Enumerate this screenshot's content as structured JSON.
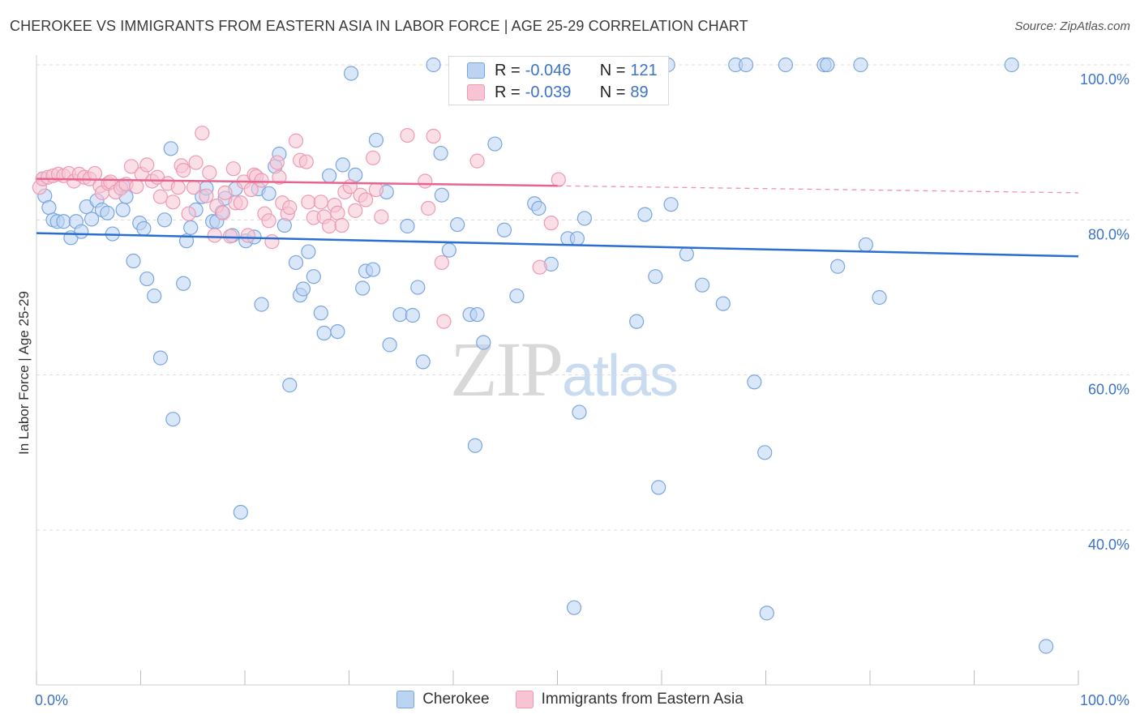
{
  "title": "CHEROKEE VS IMMIGRANTS FROM EASTERN ASIA IN LABOR FORCE | AGE 25-29 CORRELATION CHART",
  "source": "Source: ZipAtlas.com",
  "watermark": {
    "zip": "ZIP",
    "atlas": "atlas"
  },
  "legend_top": [
    {
      "r_label": "R =",
      "r_value": "-0.046",
      "n_label": "N =",
      "n_value": "121"
    },
    {
      "r_label": "R =",
      "r_value": "-0.039",
      "n_label": "N =",
      "n_value": "89"
    }
  ],
  "legend_bottom": [
    "Cherokee",
    "Immigrants from Eastern Asia"
  ],
  "colors": {
    "cherokee_fill": "#bcd4f2",
    "cherokee_stroke": "#7aa6e0",
    "cherokee_line": "#2a6fd0",
    "asia_fill": "#f7c4d4",
    "asia_stroke": "#ee9ab5",
    "asia_line": "#e8648f",
    "tick_text": "#3b73c8",
    "grid": "#dcdcdc"
  },
  "chart_data": {
    "type": "scatter",
    "title": "CHEROKEE VS IMMIGRANTS FROM EASTERN ASIA IN LABOR FORCE | AGE 25-29 CORRELATION CHART",
    "xlabel": "",
    "ylabel": "In Labor Force | Age 25-29",
    "xlim": [
      0,
      100
    ],
    "ylim": [
      20,
      102
    ],
    "x_tick_labels": [
      "0.0%",
      "100.0%"
    ],
    "y_ticks": [
      40,
      60,
      80,
      100
    ],
    "y_tick_labels": [
      "40.0%",
      "60.0%",
      "80.0%",
      "100.0%"
    ],
    "grid": true,
    "legend_position": "top-center",
    "series": [
      {
        "name": "Cherokee",
        "r": -0.046,
        "n": 121,
        "trend": {
          "x": [
            0,
            100
          ],
          "y": [
            78.3,
            75.3
          ]
        },
        "points": [
          [
            0.6,
            85.3
          ],
          [
            0.8,
            83.1
          ],
          [
            1.2,
            81.6
          ],
          [
            1.6,
            80.0
          ],
          [
            2.0,
            79.8
          ],
          [
            2.6,
            79.8
          ],
          [
            3.3,
            77.7
          ],
          [
            3.8,
            79.8
          ],
          [
            4.3,
            78.5
          ],
          [
            4.8,
            81.7
          ],
          [
            5.3,
            80.1
          ],
          [
            5.8,
            82.5
          ],
          [
            6.3,
            81.3
          ],
          [
            6.8,
            80.9
          ],
          [
            7.3,
            78.2
          ],
          [
            8.3,
            84.4
          ],
          [
            8.6,
            83.0
          ],
          [
            8.3,
            81.3
          ],
          [
            9.3,
            74.7
          ],
          [
            9.9,
            79.6
          ],
          [
            10.3,
            78.9
          ],
          [
            10.6,
            72.4
          ],
          [
            11.3,
            70.2
          ],
          [
            11.9,
            62.2
          ],
          [
            12.3,
            80.0
          ],
          [
            12.9,
            89.2
          ],
          [
            13.1,
            54.3
          ],
          [
            14.1,
            71.8
          ],
          [
            14.4,
            77.3
          ],
          [
            14.8,
            79.0
          ],
          [
            15.3,
            81.3
          ],
          [
            15.9,
            83.0
          ],
          [
            16.3,
            84.1
          ],
          [
            16.9,
            79.8
          ],
          [
            17.3,
            79.8
          ],
          [
            17.8,
            81.0
          ],
          [
            18.1,
            82.8
          ],
          [
            18.8,
            78.0
          ],
          [
            19.1,
            84.0
          ],
          [
            19.6,
            42.3
          ],
          [
            20.1,
            77.3
          ],
          [
            20.9,
            77.8
          ],
          [
            21.3,
            84.0
          ],
          [
            21.6,
            69.1
          ],
          [
            22.3,
            83.4
          ],
          [
            22.9,
            86.9
          ],
          [
            23.3,
            88.5
          ],
          [
            23.8,
            79.3
          ],
          [
            24.3,
            58.7
          ],
          [
            24.9,
            74.5
          ],
          [
            25.3,
            70.3
          ],
          [
            25.6,
            71.1
          ],
          [
            26.1,
            75.9
          ],
          [
            26.6,
            72.7
          ],
          [
            27.3,
            68.0
          ],
          [
            27.6,
            65.4
          ],
          [
            28.1,
            85.7
          ],
          [
            28.9,
            65.6
          ],
          [
            29.4,
            87.1
          ],
          [
            30.2,
            98.9
          ],
          [
            30.6,
            85.8
          ],
          [
            31.3,
            71.2
          ],
          [
            31.6,
            73.4
          ],
          [
            32.3,
            73.6
          ],
          [
            32.6,
            90.3
          ],
          [
            33.6,
            83.6
          ],
          [
            33.9,
            63.9
          ],
          [
            34.9,
            67.8
          ],
          [
            35.6,
            79.2
          ],
          [
            36.1,
            67.7
          ],
          [
            36.6,
            71.3
          ],
          [
            37.1,
            61.7
          ],
          [
            38.1,
            100
          ],
          [
            38.8,
            88.6
          ],
          [
            38.9,
            83.2
          ],
          [
            39.6,
            76.1
          ],
          [
            40.4,
            79.4
          ],
          [
            41.1,
            100
          ],
          [
            41.6,
            67.8
          ],
          [
            42.1,
            50.9
          ],
          [
            42.3,
            67.8
          ],
          [
            42.9,
            64.2
          ],
          [
            44.0,
            89.8
          ],
          [
            44.9,
            78.7
          ],
          [
            46.1,
            70.2
          ],
          [
            47.8,
            82.1
          ],
          [
            48.2,
            81.5
          ],
          [
            49.4,
            74.3
          ],
          [
            51.0,
            77.6
          ],
          [
            51.6,
            30.0
          ],
          [
            51.9,
            77.6
          ],
          [
            52.1,
            55.2
          ],
          [
            52.6,
            80.2
          ],
          [
            53.6,
            100
          ],
          [
            53.9,
            100
          ],
          [
            55.3,
            98.0
          ],
          [
            55.6,
            100
          ],
          [
            57.6,
            66.9
          ],
          [
            58.4,
            80.7
          ],
          [
            58.9,
            100
          ],
          [
            59.4,
            72.7
          ],
          [
            59.7,
            45.5
          ],
          [
            60.6,
            100
          ],
          [
            60.9,
            82.0
          ],
          [
            62.4,
            75.6
          ],
          [
            63.9,
            71.6
          ],
          [
            65.9,
            69.2
          ],
          [
            67.1,
            100
          ],
          [
            68.1,
            100
          ],
          [
            68.9,
            59.1
          ],
          [
            69.9,
            50.0
          ],
          [
            70.1,
            29.3
          ],
          [
            71.9,
            100
          ],
          [
            75.6,
            100
          ],
          [
            75.9,
            100
          ],
          [
            76.9,
            74.0
          ],
          [
            79.1,
            100
          ],
          [
            79.6,
            76.8
          ],
          [
            80.9,
            70.0
          ],
          [
            93.6,
            100
          ],
          [
            96.9,
            25.0
          ]
        ]
      },
      {
        "name": "Immigrants from Eastern Asia",
        "r": -0.039,
        "n": 89,
        "trend": {
          "x": [
            0,
            100
          ],
          "y": [
            85.3,
            83.5
          ]
        },
        "points": [
          [
            0.3,
            84.2
          ],
          [
            0.6,
            85.3
          ],
          [
            1.1,
            85.5
          ],
          [
            1.6,
            85.7
          ],
          [
            2.1,
            85.9
          ],
          [
            2.6,
            85.7
          ],
          [
            3.1,
            86.0
          ],
          [
            3.6,
            85.0
          ],
          [
            4.1,
            85.9
          ],
          [
            4.6,
            85.5
          ],
          [
            5.1,
            85.3
          ],
          [
            5.6,
            86.0
          ],
          [
            6.1,
            84.4
          ],
          [
            6.3,
            83.5
          ],
          [
            6.9,
            84.7
          ],
          [
            7.1,
            84.9
          ],
          [
            7.6,
            83.6
          ],
          [
            8.1,
            84.1
          ],
          [
            8.6,
            84.6
          ],
          [
            9.1,
            86.9
          ],
          [
            9.6,
            84.3
          ],
          [
            10.1,
            85.9
          ],
          [
            10.6,
            87.1
          ],
          [
            11.1,
            85.0
          ],
          [
            11.6,
            85.5
          ],
          [
            11.9,
            83.0
          ],
          [
            12.6,
            84.7
          ],
          [
            13.1,
            82.3
          ],
          [
            13.6,
            84.2
          ],
          [
            13.9,
            87.0
          ],
          [
            14.1,
            86.4
          ],
          [
            14.6,
            80.8
          ],
          [
            15.1,
            84.2
          ],
          [
            15.3,
            87.4
          ],
          [
            15.9,
            91.2
          ],
          [
            16.3,
            83.1
          ],
          [
            16.6,
            86.1
          ],
          [
            17.1,
            78.0
          ],
          [
            17.3,
            81.8
          ],
          [
            17.9,
            80.9
          ],
          [
            18.1,
            83.5
          ],
          [
            18.6,
            77.9
          ],
          [
            18.9,
            86.6
          ],
          [
            19.1,
            82.2
          ],
          [
            19.6,
            82.2
          ],
          [
            19.9,
            84.9
          ],
          [
            20.3,
            78.0
          ],
          [
            20.6,
            83.9
          ],
          [
            20.9,
            85.8
          ],
          [
            21.1,
            85.6
          ],
          [
            21.6,
            85.1
          ],
          [
            21.9,
            80.8
          ],
          [
            22.3,
            79.9
          ],
          [
            22.6,
            77.2
          ],
          [
            23.1,
            87.4
          ],
          [
            23.3,
            85.5
          ],
          [
            23.6,
            82.2
          ],
          [
            24.1,
            80.8
          ],
          [
            24.3,
            81.6
          ],
          [
            24.9,
            90.2
          ],
          [
            25.3,
            87.7
          ],
          [
            25.9,
            87.5
          ],
          [
            26.1,
            82.3
          ],
          [
            26.6,
            80.3
          ],
          [
            27.3,
            82.3
          ],
          [
            27.6,
            80.4
          ],
          [
            28.1,
            79.2
          ],
          [
            28.6,
            81.9
          ],
          [
            28.9,
            80.9
          ],
          [
            29.3,
            79.3
          ],
          [
            29.6,
            83.6
          ],
          [
            30.1,
            84.3
          ],
          [
            30.6,
            81.2
          ],
          [
            31.1,
            83.2
          ],
          [
            31.6,
            82.6
          ],
          [
            32.3,
            88.0
          ],
          [
            32.6,
            83.9
          ],
          [
            33.1,
            80.4
          ],
          [
            35.6,
            90.9
          ],
          [
            37.3,
            85.0
          ],
          [
            37.6,
            81.5
          ],
          [
            38.1,
            90.8
          ],
          [
            38.9,
            74.5
          ],
          [
            39.1,
            66.9
          ],
          [
            42.3,
            87.6
          ],
          [
            44.0,
            100
          ],
          [
            48.3,
            73.9
          ],
          [
            49.4,
            79.6
          ],
          [
            50.1,
            85.2
          ]
        ]
      }
    ]
  }
}
